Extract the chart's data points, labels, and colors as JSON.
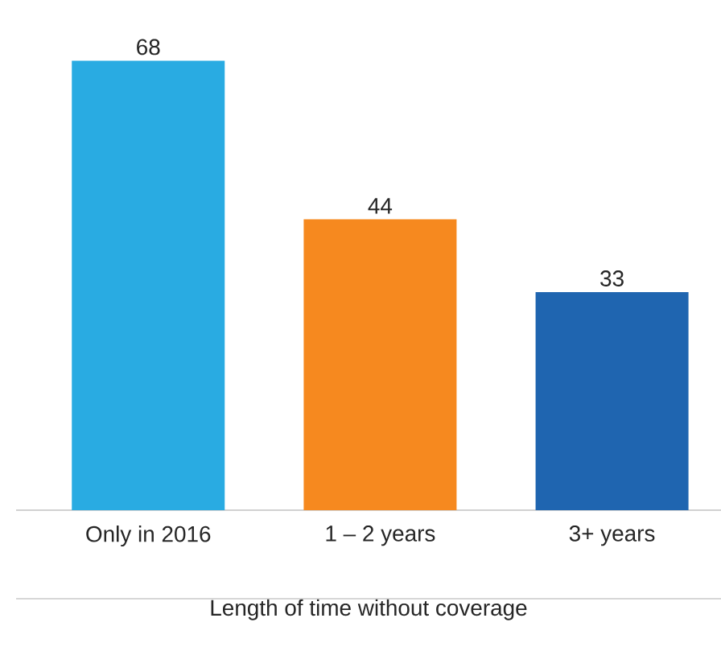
{
  "chart_data": {
    "type": "bar",
    "xlabel": "Length of time without coverage",
    "categories": [
      "Only in 2016",
      "1 – 2 years",
      "3+ years"
    ],
    "values": [
      68,
      44,
      33
    ],
    "colors": [
      "#29abe2",
      "#f6891f",
      "#1f65b0"
    ],
    "data_labels": true
  }
}
